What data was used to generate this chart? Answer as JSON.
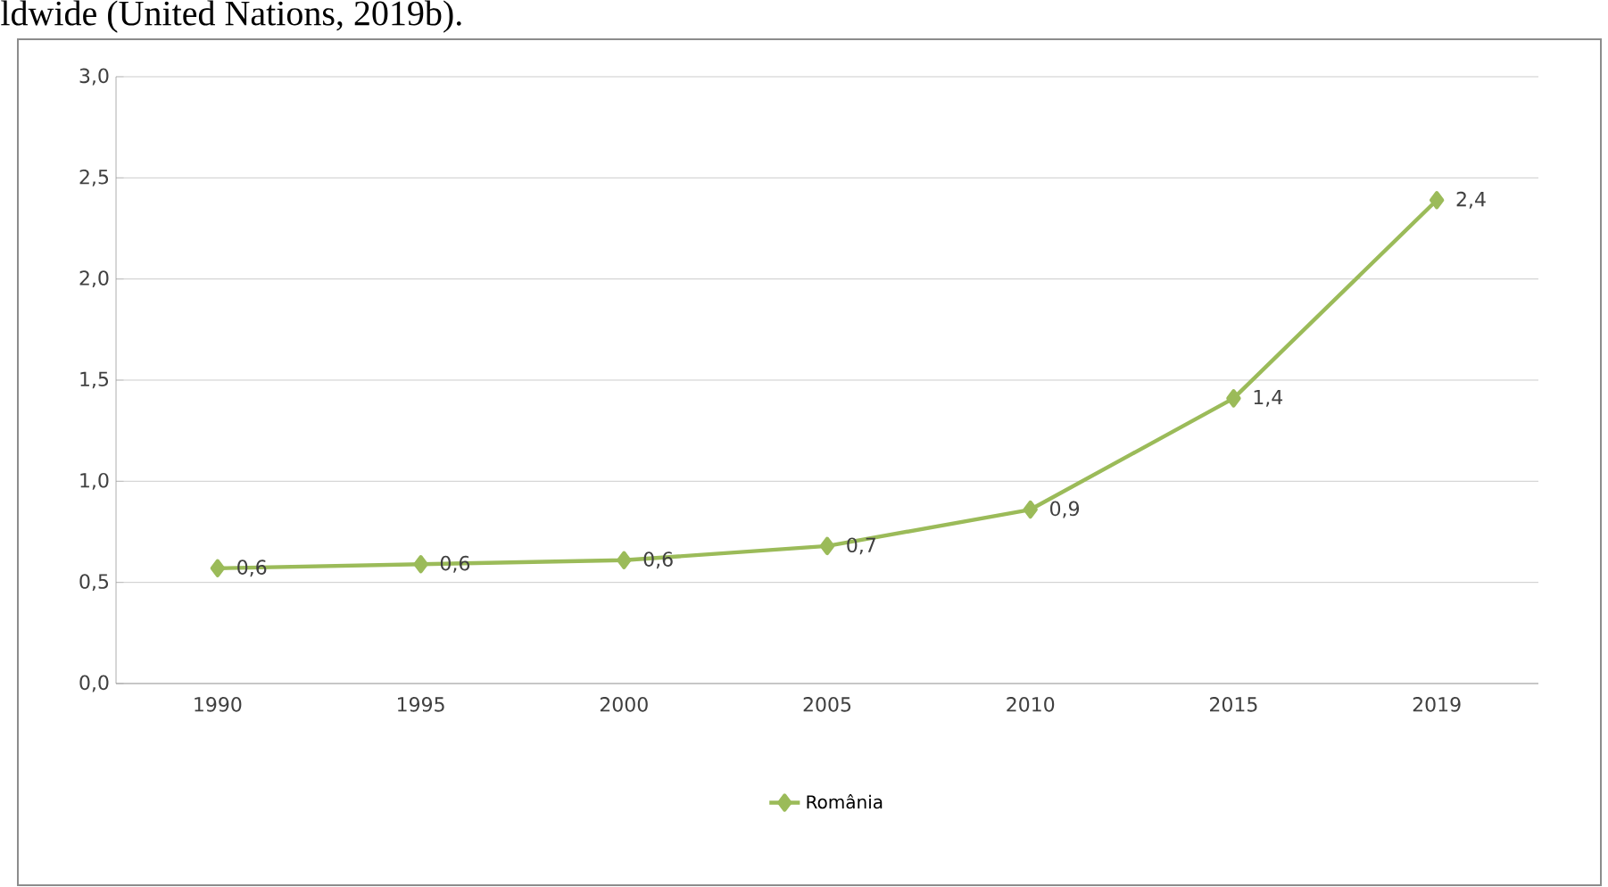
{
  "chart_data": {
    "type": "line",
    "annotations": [
      "ldwide (United Nations, 2019b)."
    ],
    "categories": [
      "1990",
      "1995",
      "2000",
      "2005",
      "2010",
      "2015",
      "2019"
    ],
    "series": [
      {
        "name": "România",
        "color": "#9bbb59",
        "values": [
          0.57,
          0.59,
          0.61,
          0.68,
          0.86,
          1.41,
          2.39
        ],
        "value_labels": [
          "0,6",
          "0,6",
          "0,6",
          "0,7",
          "0,9",
          "1,4",
          "2,4"
        ]
      }
    ],
    "ylim": [
      0,
      3
    ],
    "yticks": [
      {
        "value": 0,
        "label": "0,0"
      },
      {
        "value": 0.5,
        "label": "0,5"
      },
      {
        "value": 1,
        "label": "1,0"
      },
      {
        "value": 1.5,
        "label": "1,5"
      },
      {
        "value": 2,
        "label": "2,0"
      },
      {
        "value": 2.5,
        "label": "2,5"
      },
      {
        "value": 3,
        "label": "3,0"
      }
    ],
    "grid": "y",
    "legend": "bottom",
    "marker": "diamond",
    "line_style": "solid"
  }
}
